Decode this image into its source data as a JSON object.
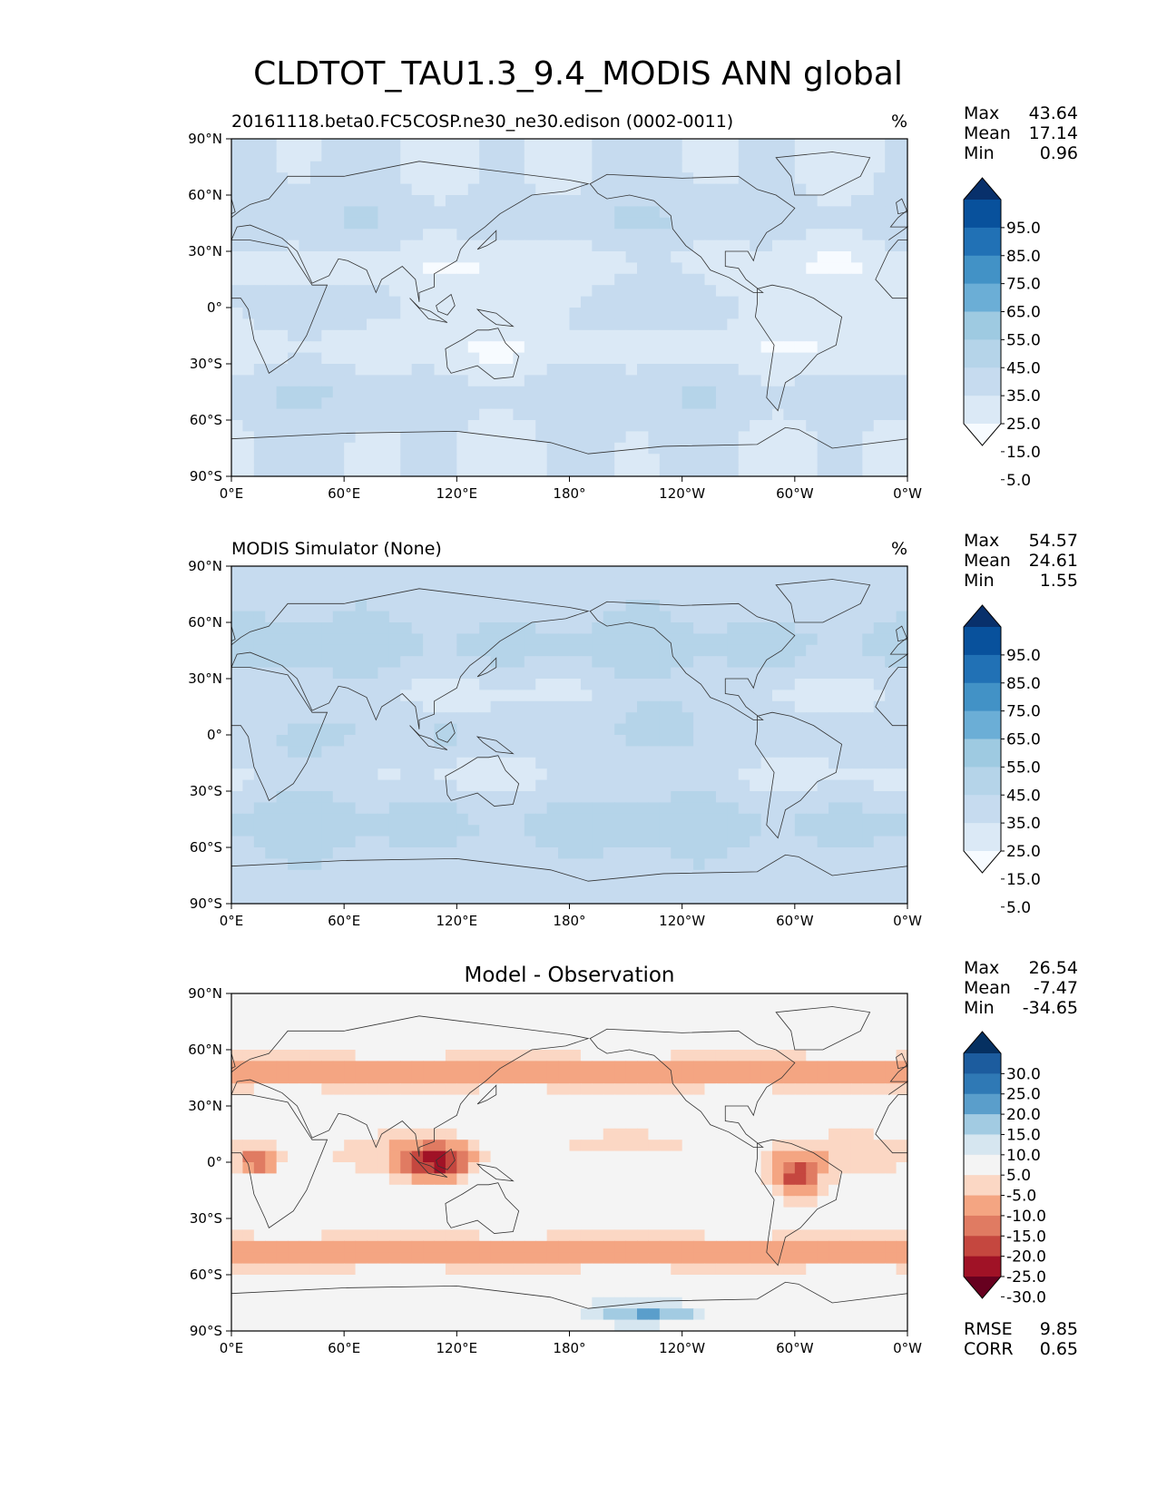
{
  "chart_data": {
    "type": "heatmap",
    "title": "CLDTOT_TAU1.3_9.4_MODIS ANN global",
    "xticks": [
      "0°E",
      "60°E",
      "120°E",
      "180°",
      "120°W",
      "60°W",
      "0°W"
    ],
    "yticks": [
      "90°N",
      "60°N",
      "30°N",
      "0°",
      "30°S",
      "60°S",
      "90°S"
    ],
    "xlim": [
      0,
      360
    ],
    "ylim": [
      -90,
      90
    ],
    "panels": [
      {
        "title_left": "20161118.beta0.FC5COSP.ne30_ne30.edison (0002-0011)",
        "title_right": "%",
        "title_center": "",
        "stats": [
          {
            "label": "Max",
            "value": "43.64"
          },
          {
            "label": "Mean",
            "value": "17.14"
          },
          {
            "label": "Min",
            "value": "0.96"
          }
        ],
        "colorbar_ticks": [
          "95.0",
          "85.0",
          "75.0",
          "65.0",
          "55.0",
          "45.0",
          "35.0",
          "25.0",
          "15.0",
          "5.0"
        ],
        "colorbar_colors": [
          "#08306b",
          "#08519c",
          "#2171b5",
          "#4292c6",
          "#6baed6",
          "#9ecae1",
          "#b5d4e9",
          "#c6dbef",
          "#dbe9f6",
          "#f7fbff"
        ],
        "field_base": 20
      },
      {
        "title_left": "MODIS Simulator (None)",
        "title_right": "%",
        "title_center": "",
        "stats": [
          {
            "label": "Max",
            "value": "54.57"
          },
          {
            "label": "Mean",
            "value": "24.61"
          },
          {
            "label": "Min",
            "value": "1.55"
          }
        ],
        "colorbar_ticks": [
          "95.0",
          "85.0",
          "75.0",
          "65.0",
          "55.0",
          "45.0",
          "35.0",
          "25.0",
          "15.0",
          "5.0"
        ],
        "colorbar_colors": [
          "#08306b",
          "#08519c",
          "#2171b5",
          "#4292c6",
          "#6baed6",
          "#9ecae1",
          "#b5d4e9",
          "#c6dbef",
          "#dbe9f6",
          "#f7fbff"
        ],
        "field_base": 27
      },
      {
        "title_left": "",
        "title_right": "",
        "title_center": "Model - Observation",
        "stats": [
          {
            "label": "Max",
            "value": "26.54"
          },
          {
            "label": "Mean",
            "value": "-7.47"
          },
          {
            "label": "Min",
            "value": "-34.65"
          }
        ],
        "colorbar_ticks": [
          "30.0",
          "25.0",
          "20.0",
          "15.0",
          "10.0",
          "5.0",
          "-5.0",
          "-10.0",
          "-15.0",
          "-20.0",
          "-25.0",
          "-30.0"
        ],
        "colorbar_colors": [
          "#053061",
          "#1c5c9e",
          "#2f79b5",
          "#5a9ecb",
          "#a2cbe2",
          "#d6e6f0",
          "#f4f4f4",
          "#fbd7c4",
          "#f4a582",
          "#e07b62",
          "#c5473f",
          "#a01226",
          "#67001f"
        ],
        "footer_stats": [
          {
            "label": "RMSE",
            "value": "9.85"
          },
          {
            "label": "CORR",
            "value": "0.65"
          }
        ],
        "field_base": -7
      }
    ]
  }
}
